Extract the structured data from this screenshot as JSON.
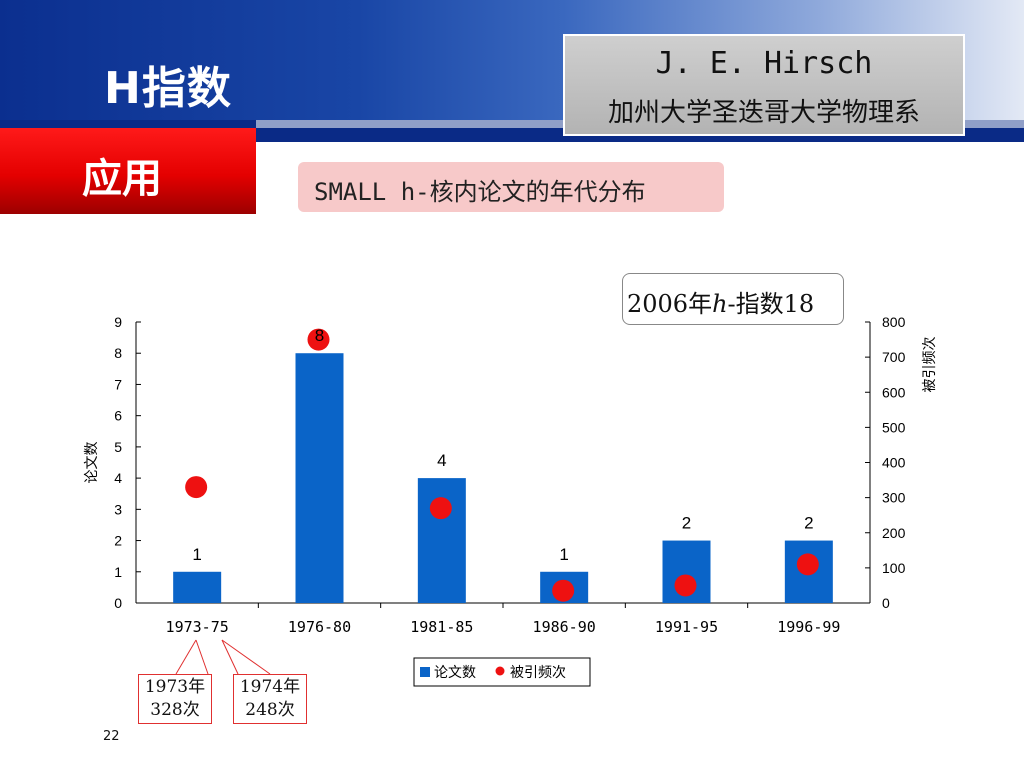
{
  "slide": {
    "title": "H指数",
    "section": "应用",
    "page_number": "22"
  },
  "author": {
    "name": "J. E. Hirsch",
    "affiliation": "加州大学圣迭哥大学物理系"
  },
  "subtitle": "SMALL h-核内论文的年代分布",
  "hindex_note": {
    "prefix": "2006年",
    "italic": "h",
    "suffix": "-指数18"
  },
  "callouts": [
    {
      "line1": "1973年",
      "line2": "328次"
    },
    {
      "line1": "1974年",
      "line2": "248次"
    }
  ],
  "colors": {
    "bar": "#0a64c8",
    "dot": "#ee1111",
    "header_blue": "#0b2f8f",
    "section_red": "#e40000"
  },
  "chart_data": {
    "type": "bar",
    "categories": [
      "1973-75",
      "1976-80",
      "1981-85",
      "1986-90",
      "1991-95",
      "1996-99"
    ],
    "series": [
      {
        "name": "论文数",
        "type": "bar",
        "axis": "left",
        "values": [
          1,
          8,
          4,
          1,
          2,
          2
        ],
        "data_labels": [
          "1",
          "8",
          "4",
          "1",
          "2",
          "2"
        ]
      },
      {
        "name": "被引频次",
        "type": "scatter",
        "axis": "right",
        "values": [
          330,
          750,
          270,
          35,
          50,
          110
        ]
      }
    ],
    "ylabel": "论文数",
    "y2label": "被引频次",
    "ylim": [
      0,
      9
    ],
    "y2lim": [
      0,
      800
    ],
    "yticks": [
      "0",
      "1",
      "2",
      "3",
      "4",
      "5",
      "6",
      "7",
      "8",
      "9"
    ],
    "y2ticks": [
      "0",
      "100",
      "200",
      "300",
      "400",
      "500",
      "600",
      "700",
      "800"
    ],
    "grid": false,
    "legend": {
      "placement": "bottom",
      "items": [
        "论文数",
        "被引频次"
      ]
    }
  }
}
